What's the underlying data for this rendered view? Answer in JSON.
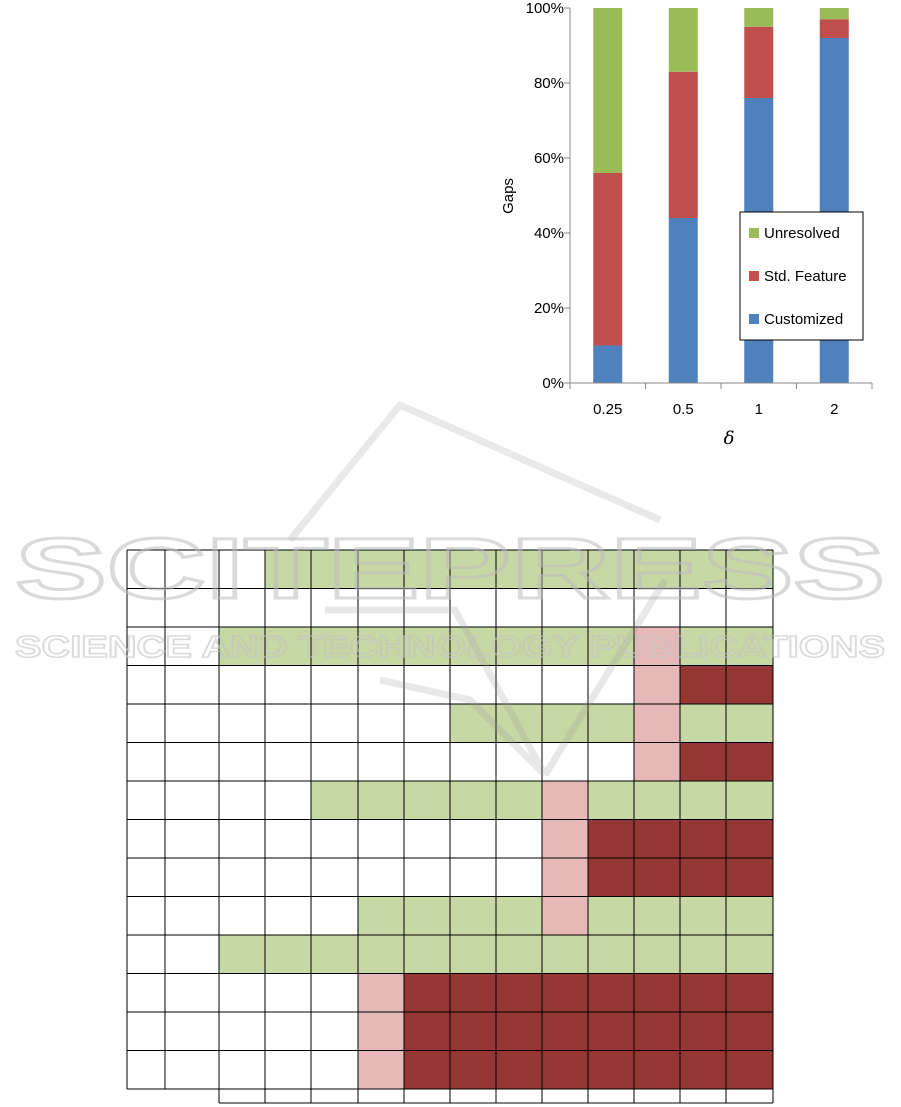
{
  "chart_data": [
    {
      "type": "bar",
      "stacked": true,
      "percent": true,
      "categories": [
        "0.25",
        "0.5",
        "1",
        "2"
      ],
      "series": [
        {
          "name": "Customized",
          "color": "#4f81bd",
          "values": [
            10,
            44,
            76,
            92
          ]
        },
        {
          "name": "Std. Feature",
          "color": "#c0504d",
          "values": [
            46,
            39,
            19,
            5
          ]
        },
        {
          "name": "Unresolved",
          "color": "#9bbb59",
          "values": [
            44,
            17,
            5,
            3
          ]
        }
      ],
      "ylabel": "Gaps",
      "xlabel": "δ",
      "ylim": [
        0,
        100
      ],
      "yticks": [
        "0%",
        "20%",
        "40%",
        "60%",
        "80%",
        "100%"
      ],
      "legend": {
        "placement": "lower-right inside",
        "entries": [
          "Unresolved",
          "Std. Feature",
          "Customized"
        ]
      },
      "grid": false
    },
    {
      "type": "heatmap",
      "colors": {
        "0": "#ffffff",
        "1": "#c6d9a5",
        "2": "#e6b8b7",
        "3": "#953735"
      },
      "legend_meaning": "0 = empty, 1 = light green, 2 = light pink, 3 = dark red",
      "cells": [
        [
          0,
          0,
          0,
          1,
          1,
          1,
          1,
          1,
          1,
          1,
          1,
          1,
          1,
          1
        ],
        [
          0,
          0,
          0,
          0,
          0,
          0,
          0,
          0,
          0,
          0,
          0,
          0,
          0,
          0
        ],
        [
          0,
          0,
          1,
          1,
          1,
          1,
          1,
          1,
          1,
          1,
          1,
          2,
          1,
          1
        ],
        [
          0,
          0,
          0,
          0,
          0,
          0,
          0,
          0,
          0,
          0,
          0,
          2,
          3,
          3
        ],
        [
          0,
          0,
          0,
          0,
          0,
          0,
          0,
          1,
          1,
          1,
          1,
          2,
          1,
          1
        ],
        [
          0,
          0,
          0,
          0,
          0,
          0,
          0,
          0,
          0,
          0,
          0,
          2,
          3,
          3
        ],
        [
          0,
          0,
          0,
          0,
          1,
          1,
          1,
          1,
          1,
          2,
          1,
          1,
          1,
          1
        ],
        [
          0,
          0,
          0,
          0,
          0,
          0,
          0,
          0,
          0,
          2,
          3,
          3,
          3,
          3
        ],
        [
          0,
          0,
          0,
          0,
          0,
          0,
          0,
          0,
          0,
          2,
          3,
          3,
          3,
          3
        ],
        [
          0,
          0,
          0,
          0,
          0,
          1,
          1,
          1,
          1,
          2,
          1,
          1,
          1,
          1
        ],
        [
          0,
          0,
          1,
          1,
          1,
          1,
          1,
          1,
          1,
          1,
          1,
          1,
          1,
          1
        ],
        [
          0,
          0,
          0,
          0,
          0,
          2,
          3,
          3,
          3,
          3,
          3,
          3,
          3,
          3
        ],
        [
          0,
          0,
          0,
          0,
          0,
          2,
          3,
          3,
          3,
          3,
          3,
          3,
          3,
          3
        ],
        [
          0,
          0,
          0,
          0,
          0,
          2,
          3,
          3,
          3,
          3,
          3,
          3,
          3,
          3
        ]
      ],
      "footer_row_columns": 12
    }
  ],
  "watermark": {
    "line1": "SCITEPRESS",
    "line2": "SCIENCE AND TECHNOLOGY PUBLICATIONS"
  }
}
